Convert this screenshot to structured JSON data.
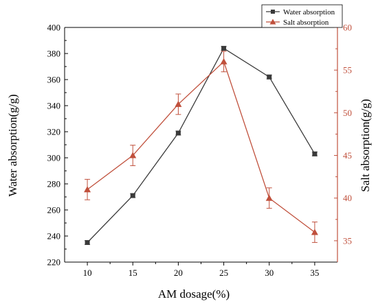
{
  "chart_data": {
    "type": "line",
    "title": "",
    "xlabel": "AM dosage(%)",
    "ylabel_left": "Water absorption(g/g)",
    "ylabel_right": "Salt absorption(g/g)",
    "x": [
      10,
      15,
      20,
      25,
      30,
      35
    ],
    "x_ticks": [
      10,
      15,
      20,
      25,
      30,
      35
    ],
    "xlim": [
      7.5,
      37.5
    ],
    "ylim_left": [
      220,
      400
    ],
    "y_ticks_left": [
      220,
      240,
      260,
      280,
      300,
      320,
      340,
      360,
      380,
      400
    ],
    "ylim_right": [
      32.5,
      60
    ],
    "y_ticks_right": [
      35,
      40,
      45,
      50,
      55,
      60
    ],
    "grid": false,
    "legend_position": "top-right",
    "series": [
      {
        "name": "Water absorption",
        "axis": "left",
        "marker": "square",
        "color": "#3a3a3a",
        "values": [
          235,
          271,
          319,
          384,
          362,
          303
        ],
        "errors": [
          1.5,
          1.5,
          1.5,
          1.5,
          1.5,
          1.5
        ]
      },
      {
        "name": "Salt absorption",
        "axis": "right",
        "marker": "triangle",
        "color": "#c0503c",
        "values": [
          41,
          45,
          51,
          56,
          40,
          36
        ],
        "errors": [
          1.2,
          1.2,
          1.2,
          1.2,
          1.2,
          1.2
        ]
      }
    ]
  }
}
